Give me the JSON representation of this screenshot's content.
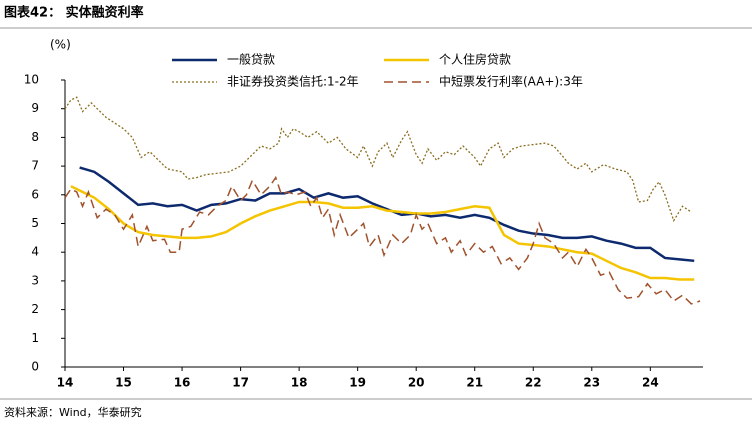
{
  "chart_data": {
    "type": "line",
    "title": "图表42：  实体融资利率",
    "y_label": "(%)",
    "source": "资料来源：Wind，华泰研究",
    "xlim": [
      14,
      24.9
    ],
    "xticks": [
      14,
      15,
      16,
      17,
      18,
      19,
      20,
      21,
      22,
      23,
      24
    ],
    "ylim": [
      0,
      10
    ],
    "yticks": [
      0,
      1,
      2,
      3,
      4,
      5,
      6,
      7,
      8,
      9,
      10
    ],
    "grid": false,
    "legend": "top",
    "series": [
      {
        "name": "一般贷款",
        "color": "#0d2a6e",
        "style": "solid",
        "x": [
          14.25,
          14.5,
          14.75,
          15,
          15.25,
          15.5,
          15.75,
          16,
          16.25,
          16.5,
          16.75,
          17,
          17.25,
          17.5,
          17.75,
          18,
          18.25,
          18.5,
          18.75,
          19,
          19.25,
          19.5,
          19.75,
          20,
          20.25,
          20.5,
          20.75,
          21,
          21.25,
          21.5,
          21.75,
          22,
          22.25,
          22.5,
          22.75,
          23,
          23.25,
          23.5,
          23.75,
          24,
          24.25,
          24.5,
          24.75
        ],
        "values": [
          6.95,
          6.8,
          6.45,
          6.05,
          5.65,
          5.7,
          5.6,
          5.65,
          5.45,
          5.65,
          5.7,
          5.85,
          5.8,
          6.05,
          6.05,
          6.2,
          5.9,
          6.05,
          5.9,
          5.95,
          5.7,
          5.5,
          5.3,
          5.35,
          5.25,
          5.3,
          5.2,
          5.3,
          5.2,
          4.95,
          4.75,
          4.65,
          4.6,
          4.5,
          4.5,
          4.55,
          4.4,
          4.3,
          4.15,
          4.15,
          3.8,
          3.75,
          3.7
        ]
      },
      {
        "name": "个人住房贷款",
        "color": "#f5c400",
        "style": "solid",
        "x": [
          14.1,
          14.25,
          14.5,
          14.75,
          15,
          15.25,
          15.5,
          15.75,
          16,
          16.25,
          16.5,
          16.75,
          17,
          17.25,
          17.5,
          17.75,
          18,
          18.25,
          18.5,
          18.75,
          19,
          19.25,
          19.5,
          19.75,
          20,
          20.25,
          20.5,
          20.75,
          21,
          21.25,
          21.5,
          21.75,
          22,
          22.25,
          22.5,
          22.75,
          23,
          23.25,
          23.5,
          23.75,
          24,
          24.25,
          24.5,
          24.75
        ],
        "values": [
          6.3,
          6.15,
          5.9,
          5.5,
          5.0,
          4.7,
          4.6,
          4.55,
          4.5,
          4.5,
          4.55,
          4.7,
          5.0,
          5.25,
          5.45,
          5.6,
          5.75,
          5.75,
          5.7,
          5.55,
          5.55,
          5.6,
          5.45,
          5.4,
          5.35,
          5.35,
          5.4,
          5.5,
          5.6,
          5.55,
          4.6,
          4.3,
          4.25,
          4.2,
          4.1,
          4.0,
          3.95,
          3.7,
          3.45,
          3.3,
          3.1,
          3.1,
          3.05,
          3.05
        ]
      },
      {
        "name": "非证券投资类信托:1-2年",
        "color": "#8b6d1f",
        "style": "dotted",
        "x": [
          14,
          14.1,
          14.2,
          14.3,
          14.45,
          14.55,
          14.7,
          14.85,
          15,
          15.15,
          15.3,
          15.45,
          15.6,
          15.75,
          16,
          16.1,
          16.25,
          16.4,
          16.6,
          16.8,
          17,
          17.2,
          17.35,
          17.5,
          17.65,
          17.7,
          17.8,
          17.9,
          18,
          18.15,
          18.3,
          18.5,
          18.65,
          18.8,
          19,
          19.1,
          19.25,
          19.35,
          19.5,
          19.6,
          19.75,
          19.85,
          20,
          20.1,
          20.2,
          20.35,
          20.5,
          20.65,
          20.8,
          21,
          21.1,
          21.25,
          21.4,
          21.5,
          21.65,
          21.8,
          22,
          22.2,
          22.35,
          22.5,
          22.6,
          22.75,
          22.9,
          23,
          23.2,
          23.4,
          23.6,
          23.7,
          23.8,
          23.95,
          24.05,
          24.15,
          24.25,
          24.4,
          24.55,
          24.7
        ],
        "values": [
          9.0,
          9.3,
          9.4,
          8.9,
          9.2,
          9.0,
          8.7,
          8.5,
          8.3,
          8.0,
          7.3,
          7.5,
          7.2,
          6.9,
          6.8,
          6.55,
          6.6,
          6.7,
          6.75,
          6.8,
          7.0,
          7.4,
          7.7,
          7.6,
          7.8,
          8.3,
          8.0,
          8.3,
          8.2,
          8.0,
          8.2,
          7.8,
          8.0,
          7.6,
          7.3,
          7.7,
          7.0,
          7.5,
          7.8,
          7.3,
          7.9,
          8.2,
          7.4,
          7.1,
          7.6,
          7.2,
          7.5,
          7.4,
          7.7,
          7.3,
          7.0,
          7.6,
          7.8,
          7.3,
          7.6,
          7.7,
          7.75,
          7.8,
          7.7,
          7.35,
          7.1,
          6.9,
          7.1,
          6.8,
          7.05,
          6.9,
          6.8,
          6.5,
          5.75,
          5.8,
          6.2,
          6.45,
          6.0,
          5.1,
          5.6,
          5.4
        ]
      },
      {
        "name": "中短票发行利率(AA+):3年",
        "color": "#a0522d",
        "style": "dashed",
        "x": [
          14,
          14.1,
          14.2,
          14.3,
          14.4,
          14.55,
          14.7,
          14.85,
          15,
          15.15,
          15.25,
          15.4,
          15.5,
          15.7,
          15.8,
          15.95,
          16,
          16.15,
          16.3,
          16.45,
          16.6,
          16.75,
          16.85,
          17,
          17.1,
          17.2,
          17.35,
          17.5,
          17.6,
          17.7,
          17.8,
          17.95,
          18.1,
          18.2,
          18.3,
          18.4,
          18.5,
          18.6,
          18.7,
          18.85,
          19,
          19.1,
          19.2,
          19.35,
          19.45,
          19.6,
          19.75,
          19.9,
          20,
          20.1,
          20.2,
          20.35,
          20.5,
          20.6,
          20.75,
          20.85,
          21,
          21.15,
          21.3,
          21.45,
          21.6,
          21.75,
          21.9,
          22,
          22.1,
          22.2,
          22.35,
          22.5,
          22.6,
          22.75,
          22.9,
          23,
          23.15,
          23.3,
          23.45,
          23.6,
          23.8,
          23.95,
          24.1,
          24.25,
          24.4,
          24.55,
          24.7,
          24.85
        ],
        "values": [
          5.9,
          6.2,
          6.1,
          5.6,
          6.1,
          5.2,
          5.5,
          5.3,
          4.8,
          5.3,
          4.2,
          4.9,
          4.4,
          4.45,
          4.0,
          4.0,
          4.8,
          4.9,
          5.4,
          5.3,
          5.6,
          5.8,
          6.3,
          5.8,
          6.0,
          6.5,
          6.0,
          6.3,
          6.6,
          6.0,
          6.1,
          6.0,
          6.1,
          5.6,
          5.9,
          5.2,
          5.5,
          4.6,
          5.3,
          4.5,
          4.8,
          5.0,
          4.2,
          4.6,
          3.9,
          4.6,
          4.3,
          4.6,
          5.3,
          4.8,
          5.0,
          4.3,
          4.5,
          4.0,
          4.4,
          3.9,
          4.3,
          4.0,
          4.2,
          3.6,
          3.8,
          3.4,
          3.8,
          4.3,
          5.0,
          4.5,
          4.3,
          3.8,
          4.0,
          3.5,
          4.1,
          3.8,
          3.2,
          3.3,
          2.7,
          2.4,
          2.45,
          2.9,
          2.55,
          2.7,
          2.3,
          2.5,
          2.2,
          2.3
        ]
      }
    ]
  }
}
